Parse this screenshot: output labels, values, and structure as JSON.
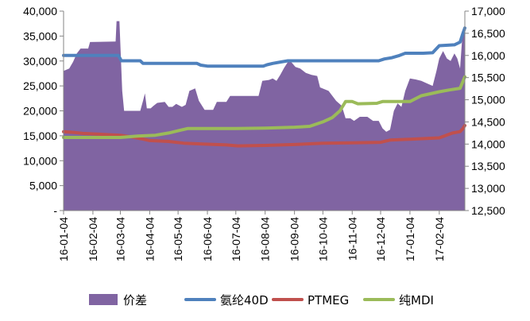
{
  "chart_data": {
    "type": "area+line",
    "x_tick_labels": [
      "16-01-04",
      "16-02-04",
      "16-03-04",
      "16-04-04",
      "16-05-04",
      "16-06-04",
      "16-07-04",
      "16-08-04",
      "16-09-04",
      "16-10-04",
      "16-11-04",
      "16-12-04",
      "17-01-04",
      "17-02-04"
    ],
    "y_left": {
      "ylim": [
        0,
        40000
      ],
      "tick_labels": [
        "-",
        "5,000",
        "10,000",
        "15,000",
        "20,000",
        "25,000",
        "30,000",
        "35,000",
        "40,000"
      ]
    },
    "y_right": {
      "ylim": [
        12500,
        17000
      ],
      "tick_labels": [
        "12,500",
        "13,000",
        "13,500",
        "14,000",
        "14,500",
        "15,000",
        "15,500",
        "16,000",
        "16,500",
        "17,000"
      ]
    },
    "series": [
      {
        "name": "价差",
        "axis": "left",
        "kind": "area",
        "color": "#8064A2",
        "points": [
          [
            "16-01-04",
            28000
          ],
          [
            "16-01-10",
            28500
          ],
          [
            "16-01-14",
            29800
          ],
          [
            "16-01-18",
            31500
          ],
          [
            "16-01-22",
            32500
          ],
          [
            "16-01-30",
            32500
          ],
          [
            "16-02-01",
            33800
          ],
          [
            "16-02-28",
            33900
          ],
          [
            "16-02-29",
            38000
          ],
          [
            "16-03-03",
            38000
          ],
          [
            "16-03-06",
            24000
          ],
          [
            "16-03-08",
            20000
          ],
          [
            "16-03-25",
            20000
          ],
          [
            "16-03-28",
            22000
          ],
          [
            "16-03-30",
            23500
          ],
          [
            "16-04-01",
            20500
          ],
          [
            "16-04-05",
            20500
          ],
          [
            "16-04-08",
            21000
          ],
          [
            "16-04-12",
            21600
          ],
          [
            "16-04-20",
            21800
          ],
          [
            "16-04-24",
            20800
          ],
          [
            "16-04-28",
            20800
          ],
          [
            "16-05-02",
            21400
          ],
          [
            "16-05-08",
            20800
          ],
          [
            "16-05-12",
            21200
          ],
          [
            "16-05-16",
            24000
          ],
          [
            "16-05-22",
            24500
          ],
          [
            "16-05-26",
            22000
          ],
          [
            "16-06-01",
            20200
          ],
          [
            "16-06-10",
            20200
          ],
          [
            "16-06-14",
            21800
          ],
          [
            "16-06-24",
            21800
          ],
          [
            "16-06-28",
            23000
          ],
          [
            "16-07-10",
            23000
          ],
          [
            "16-07-28",
            23000
          ],
          [
            "16-08-01",
            26000
          ],
          [
            "16-08-08",
            26200
          ],
          [
            "16-08-12",
            26500
          ],
          [
            "16-08-16",
            26000
          ],
          [
            "16-08-20",
            27200
          ],
          [
            "16-08-24",
            28600
          ],
          [
            "16-08-28",
            29800
          ],
          [
            "16-09-01",
            29700
          ],
          [
            "16-09-05",
            28800
          ],
          [
            "16-09-10",
            28500
          ],
          [
            "16-09-16",
            27600
          ],
          [
            "16-09-22",
            27200
          ],
          [
            "16-09-28",
            27000
          ],
          [
            "16-10-01",
            24700
          ],
          [
            "16-10-10",
            24000
          ],
          [
            "16-10-18",
            22000
          ],
          [
            "16-10-24",
            21000
          ],
          [
            "16-10-28",
            18500
          ],
          [
            "16-11-02",
            18500
          ],
          [
            "16-11-06",
            18000
          ],
          [
            "16-11-12",
            18800
          ],
          [
            "16-11-20",
            18800
          ],
          [
            "16-11-26",
            18000
          ],
          [
            "16-12-02",
            18000
          ],
          [
            "16-12-06",
            16500
          ],
          [
            "16-12-10",
            15800
          ],
          [
            "16-12-14",
            16200
          ],
          [
            "16-12-18",
            20000
          ],
          [
            "16-12-22",
            21500
          ],
          [
            "16-12-26",
            20800
          ],
          [
            "16-12-30",
            24000
          ],
          [
            "17-01-04",
            26500
          ],
          [
            "17-01-10",
            26300
          ],
          [
            "17-01-16",
            26000
          ],
          [
            "17-01-22",
            25500
          ],
          [
            "17-01-28",
            25000
          ],
          [
            "17-02-01",
            28000
          ],
          [
            "17-02-04",
            30500
          ],
          [
            "17-02-08",
            32000
          ],
          [
            "17-02-12",
            30500
          ],
          [
            "17-02-16",
            30000
          ],
          [
            "17-02-20",
            31500
          ],
          [
            "17-02-23",
            30500
          ],
          [
            "17-02-26",
            28500
          ],
          [
            "17-02-28",
            34000
          ],
          [
            "17-03-03",
            37000
          ]
        ]
      },
      {
        "name": "氨纶40D",
        "axis": "right",
        "kind": "line",
        "color": "#4F81BD",
        "points": [
          [
            "16-01-04",
            16000
          ],
          [
            "16-03-02",
            16000
          ],
          [
            "16-03-05",
            15880
          ],
          [
            "16-03-25",
            15880
          ],
          [
            "16-03-28",
            15820
          ],
          [
            "16-05-24",
            15820
          ],
          [
            "16-05-28",
            15780
          ],
          [
            "16-06-04",
            15760
          ],
          [
            "16-08-02",
            15760
          ],
          [
            "16-08-06",
            15790
          ],
          [
            "16-08-12",
            15820
          ],
          [
            "16-08-20",
            15850
          ],
          [
            "16-08-28",
            15880
          ],
          [
            "16-09-04",
            15880
          ],
          [
            "16-12-02",
            15880
          ],
          [
            "16-12-08",
            15920
          ],
          [
            "16-12-16",
            15950
          ],
          [
            "16-12-24",
            16000
          ],
          [
            "16-12-30",
            16050
          ],
          [
            "17-01-06",
            16050
          ],
          [
            "17-01-18",
            16050
          ],
          [
            "17-01-28",
            16060
          ],
          [
            "17-02-04",
            16220
          ],
          [
            "17-02-20",
            16240
          ],
          [
            "17-02-26",
            16300
          ],
          [
            "17-03-01",
            16500
          ],
          [
            "17-03-03",
            16620
          ]
        ]
      },
      {
        "name": "PTMEG",
        "axis": "right",
        "kind": "line",
        "color": "#C0504D",
        "points": [
          [
            "16-01-04",
            14280
          ],
          [
            "16-01-16",
            14260
          ],
          [
            "16-01-24",
            14240
          ],
          [
            "16-02-04",
            14230
          ],
          [
            "16-03-04",
            14200
          ],
          [
            "16-03-16",
            14160
          ],
          [
            "16-03-26",
            14120
          ],
          [
            "16-04-04",
            14080
          ],
          [
            "16-04-24",
            14060
          ],
          [
            "16-05-10",
            14020
          ],
          [
            "16-05-30",
            14000
          ],
          [
            "16-06-24",
            13980
          ],
          [
            "16-07-06",
            13960
          ],
          [
            "16-08-04",
            13970
          ],
          [
            "16-09-04",
            13990
          ],
          [
            "16-10-04",
            14020
          ],
          [
            "16-11-04",
            14030
          ],
          [
            "16-12-04",
            14040
          ],
          [
            "16-12-14",
            14090
          ],
          [
            "17-01-04",
            14110
          ],
          [
            "17-02-04",
            14140
          ],
          [
            "17-02-18",
            14250
          ],
          [
            "17-02-26",
            14280
          ],
          [
            "17-03-01",
            14350
          ],
          [
            "17-03-03",
            14420
          ]
        ]
      },
      {
        "name": "纯MDI",
        "axis": "right",
        "kind": "line",
        "color": "#9BBB59",
        "points": [
          [
            "16-01-04",
            14150
          ],
          [
            "16-03-04",
            14150
          ],
          [
            "16-03-22",
            14180
          ],
          [
            "16-04-10",
            14200
          ],
          [
            "16-04-24",
            14250
          ],
          [
            "16-05-04",
            14300
          ],
          [
            "16-05-14",
            14350
          ],
          [
            "16-07-04",
            14350
          ],
          [
            "16-08-04",
            14360
          ],
          [
            "16-09-04",
            14380
          ],
          [
            "16-09-20",
            14400
          ],
          [
            "16-10-04",
            14500
          ],
          [
            "16-10-14",
            14600
          ],
          [
            "16-10-22",
            14750
          ],
          [
            "16-10-28",
            14960
          ],
          [
            "16-11-04",
            14960
          ],
          [
            "16-11-10",
            14910
          ],
          [
            "16-11-30",
            14920
          ],
          [
            "16-12-06",
            14960
          ],
          [
            "17-01-04",
            14960
          ],
          [
            "17-01-16",
            15090
          ],
          [
            "17-02-04",
            15180
          ],
          [
            "17-02-14",
            15220
          ],
          [
            "17-02-26",
            15260
          ],
          [
            "17-03-03",
            15520
          ]
        ]
      }
    ],
    "legend": {
      "position": "bottom"
    }
  }
}
